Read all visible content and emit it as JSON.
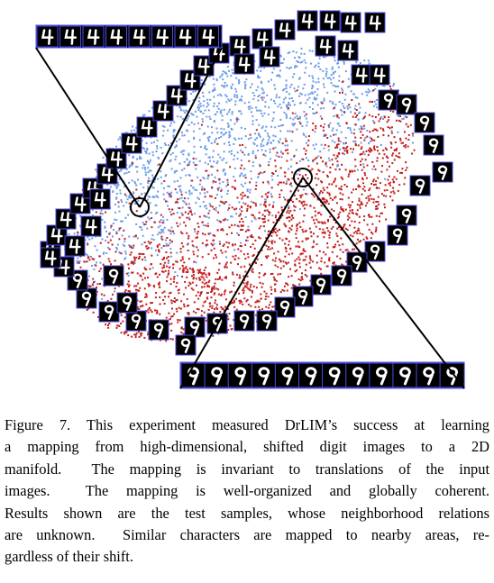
{
  "caption": {
    "lines": [
      "Figure 7. This experiment measured DrLIM’s success at learning",
      "a mapping from high-dimensional, shifted digit images to a 2D",
      "manifold.  The mapping is invariant to translations of the input",
      "images.  The mapping is well-organized and globally coherent.",
      "Results shown are the test samples, whose neighborhood relations",
      "are unknown.  Similar characters are mapped to nearby areas, re-",
      "gardless of their shift."
    ]
  }
}
